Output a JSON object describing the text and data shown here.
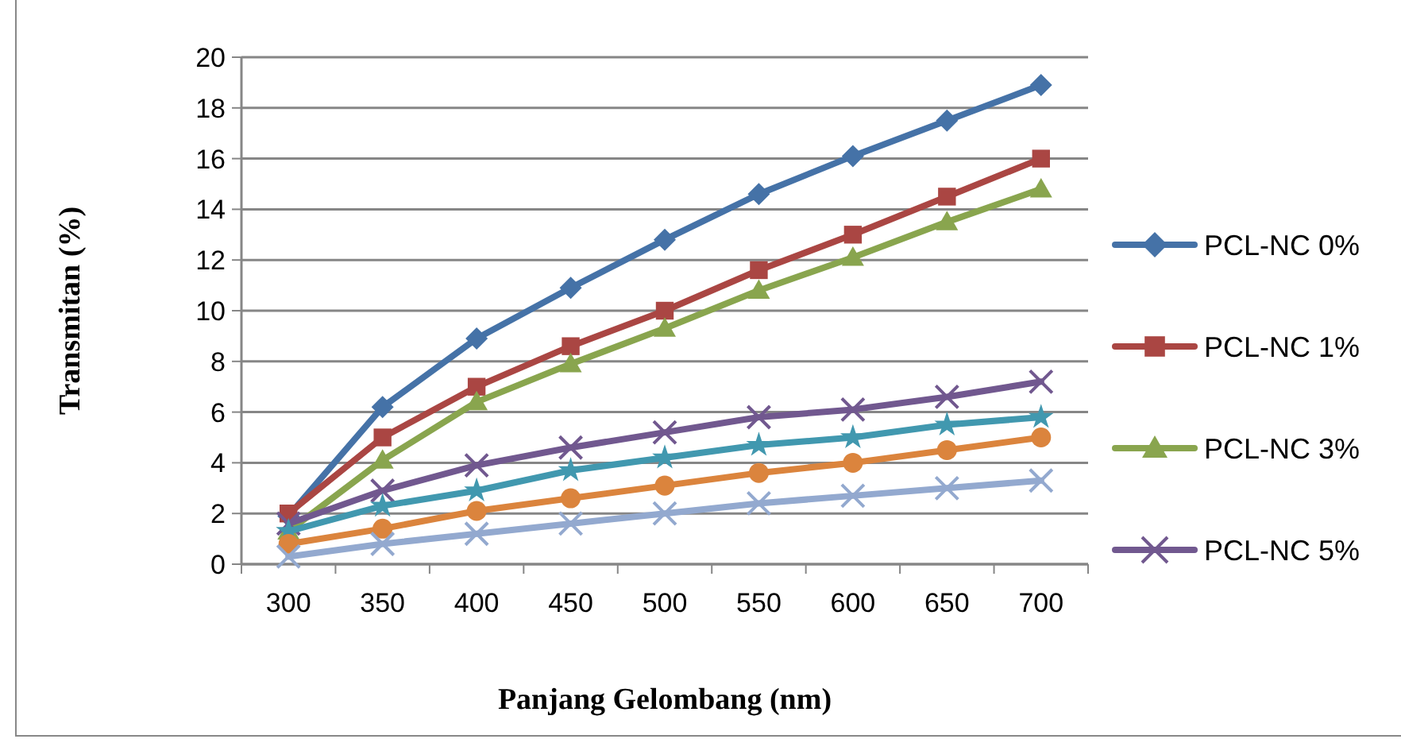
{
  "chart_data": {
    "type": "line",
    "xlabel": "Panjang Gelombang (nm)",
    "ylabel": "Transmitan (%)",
    "categories": [
      "300",
      "350",
      "400",
      "450",
      "500",
      "550",
      "600",
      "650",
      "700"
    ],
    "ylim": [
      0,
      20
    ],
    "yticks": [
      0,
      2,
      4,
      6,
      8,
      10,
      12,
      14,
      16,
      18,
      20
    ],
    "grid": "y",
    "legend": "right",
    "series": [
      {
        "name": "PCL-NC 0%",
        "color": "#4572a7",
        "marker": "diamond",
        "values": [
          1.9,
          6.2,
          8.9,
          10.9,
          12.8,
          14.6,
          16.1,
          17.5,
          18.9
        ]
      },
      {
        "name": "PCL-NC 1%",
        "color": "#aa4643",
        "marker": "square",
        "values": [
          2.0,
          5.0,
          7.0,
          8.6,
          10.0,
          11.6,
          13.0,
          14.5,
          16.0
        ]
      },
      {
        "name": "PCL-NC 3%",
        "color": "#89a54e",
        "marker": "triangle",
        "values": [
          1.3,
          4.1,
          6.4,
          7.9,
          9.3,
          10.8,
          12.1,
          13.5,
          14.8
        ]
      },
      {
        "name": "PCL-NC 5%",
        "color": "#71588f",
        "marker": "cross",
        "values": [
          1.6,
          2.9,
          3.9,
          4.6,
          5.2,
          5.8,
          6.1,
          6.6,
          7.2
        ]
      },
      {
        "color": "#4198af",
        "marker": "star",
        "values": [
          1.3,
          2.3,
          2.9,
          3.7,
          4.2,
          4.7,
          5.0,
          5.5,
          5.8
        ]
      },
      {
        "color": "#db843d",
        "marker": "circle",
        "values": [
          0.8,
          1.4,
          2.1,
          2.6,
          3.1,
          3.6,
          4.0,
          4.5,
          5.0
        ]
      },
      {
        "color": "#93a9cf",
        "marker": "cross",
        "values": [
          0.3,
          0.8,
          1.2,
          1.6,
          2.0,
          2.4,
          2.7,
          3.0,
          3.3
        ]
      }
    ]
  }
}
